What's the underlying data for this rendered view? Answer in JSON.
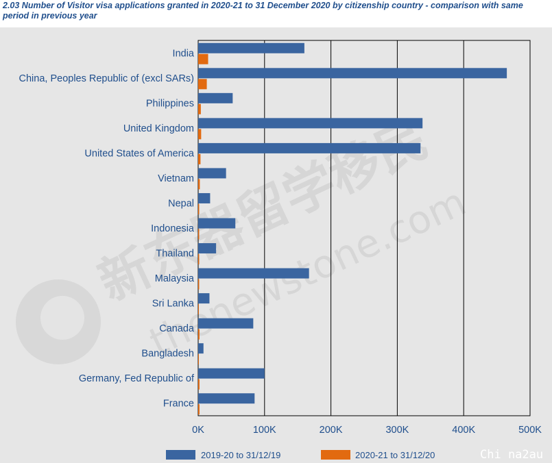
{
  "title": "2.03 Number of Visitor visa applications granted in 2020-21 to 31 December 2020 by citizenship country - comparison with same period in previous year",
  "watermark": {
    "text_cjk": "新东器留学移民",
    "text_url": "thenewstone.com",
    "text_corner": "Chi na2au"
  },
  "colors": {
    "series1": "#3a65a0",
    "series2": "#e26a10",
    "text": "#1f4e8c",
    "background": "#e6e6e6"
  },
  "chart_data": {
    "type": "bar",
    "orientation": "horizontal",
    "categories": [
      "India",
      "China, Peoples Republic of (excl SARs)",
      "Philippines",
      "United Kingdom",
      "United States of America",
      "Vietnam",
      "Nepal",
      "Indonesia",
      "Thailand",
      "Malaysia",
      "Sri Lanka",
      "Canada",
      "Bangladesh",
      "Germany, Fed Republic of",
      "France"
    ],
    "series": [
      {
        "name": "2019-20 to 31/12/19",
        "values": [
          160000,
          465000,
          52000,
          338000,
          335000,
          42000,
          18000,
          56000,
          27000,
          167000,
          17000,
          83000,
          8000,
          100000,
          85000
        ]
      },
      {
        "name": "2020-21 to 31/12/20",
        "values": [
          15000,
          13000,
          4000,
          4500,
          3500,
          2500,
          1500,
          1500,
          1500,
          1500,
          1000,
          2000,
          1000,
          2000,
          2000
        ]
      }
    ],
    "xticks": [
      "0K",
      "100K",
      "200K",
      "300K",
      "400K",
      "500K"
    ],
    "xlim": [
      0,
      500000
    ],
    "grid": "vertical",
    "legend_position": "bottom"
  }
}
